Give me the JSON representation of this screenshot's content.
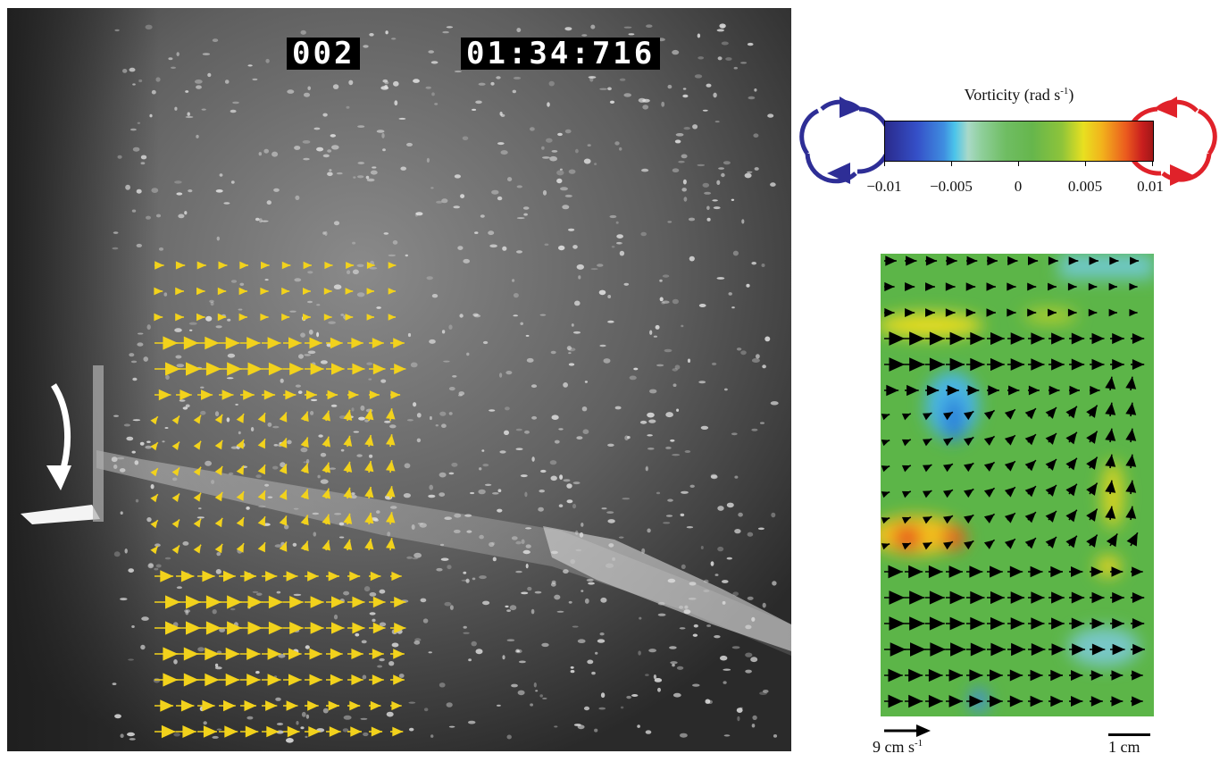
{
  "photo": {
    "frame_counter": "002",
    "timecode": "01:34:716",
    "overlay_arrow_color": "#f2d21c",
    "motion_arrow_color": "#ffffff"
  },
  "legend": {
    "title": "Vorticity (rad s",
    "title_exponent": "-1",
    "title_close": ")",
    "ticks": [
      "−0.01",
      "−0.005",
      "0",
      "0.005",
      "0.01"
    ],
    "tick_values": [
      -0.01,
      -0.005,
      0,
      0.005,
      0.01
    ],
    "clockwise_color": "#2e2e96",
    "counterclockwise_color": "#e0222a",
    "colormap": [
      "#2a2a8c",
      "#3550c8",
      "#4bc4ea",
      "#8fcf9a",
      "#66b64c",
      "#e8e020",
      "#eb5a1e",
      "#a01818"
    ]
  },
  "flow_map": {
    "background_color": "#5cb548",
    "vector_color": "#000000"
  },
  "scales": {
    "velocity_label": "9 cm s",
    "velocity_exponent": "-1",
    "length_label": "1 cm"
  }
}
